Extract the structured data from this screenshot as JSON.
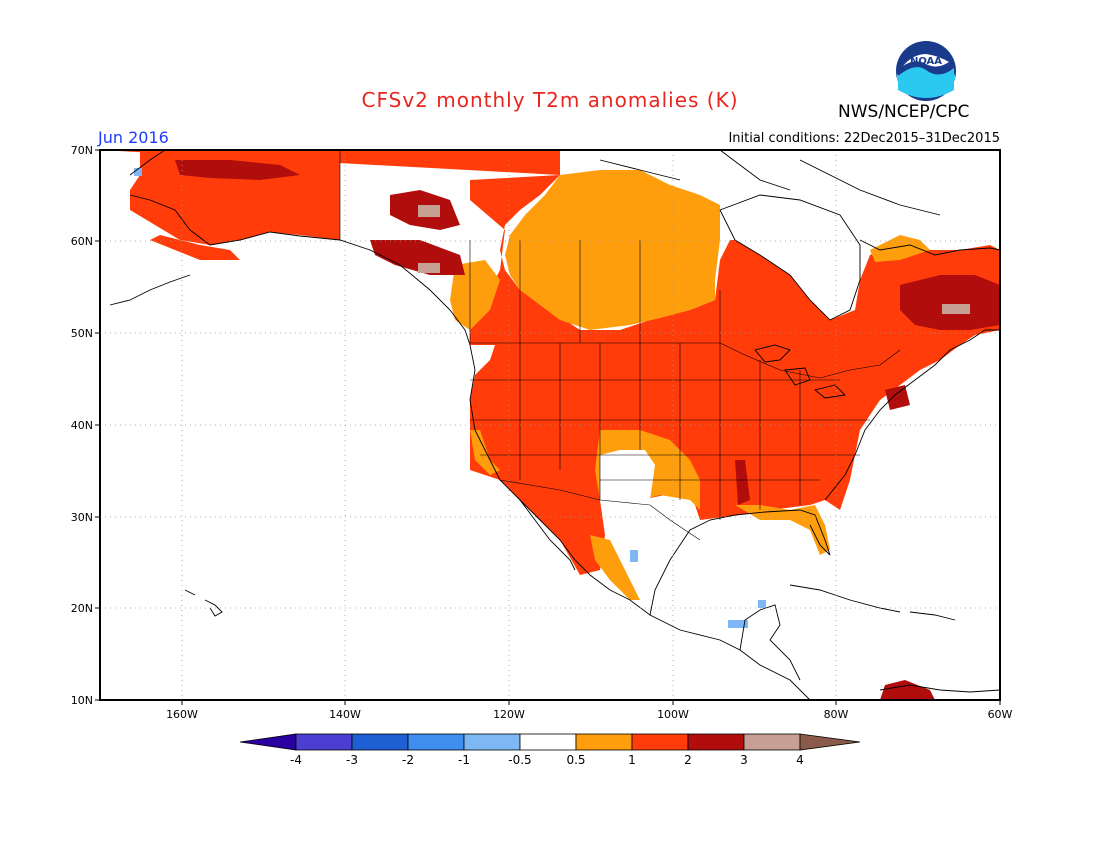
{
  "header": {
    "title": "CFSv2 monthly T2m anomalies (K)",
    "org": "NWS/NCEP/CPC",
    "logo_text": "NOAA",
    "month": "Jun 2016",
    "initial_conditions": "Initial conditions: 22Dec2015–31Dec2015"
  },
  "map": {
    "lon_range": [
      -170,
      -60
    ],
    "lat_range": [
      10,
      70
    ],
    "lat_labels": [
      "70N",
      "60N",
      "50N",
      "40N",
      "30N",
      "20N",
      "10N"
    ],
    "lon_labels": [
      "160W",
      "140W",
      "120W",
      "100W",
      "80W",
      "60W"
    ]
  },
  "colorbar": {
    "labels": [
      "-4",
      "-3",
      "-2",
      "-1",
      "-0.5",
      "0.5",
      "1",
      "2",
      "3",
      "4"
    ],
    "colors": [
      "#2b00a0",
      "#4a3fd0",
      "#1f5fd4",
      "#3e8ef0",
      "#7db8f5",
      "#ffffff",
      "#ff9e0c",
      "#ff3c0a",
      "#b20d0d",
      "#c8a093",
      "#8a5a4a"
    ]
  },
  "anomaly_regions": [
    {
      "level": "1-2",
      "color": "#ff3c0a"
    },
    {
      "level": "0.5-1",
      "color": "#ff9e0c"
    },
    {
      "level": "2-3",
      "color": "#b20d0d"
    },
    {
      "level": "3-4",
      "color": "#c8a093"
    },
    {
      "level": "-1--0.5",
      "color": "#7db8f5"
    }
  ]
}
